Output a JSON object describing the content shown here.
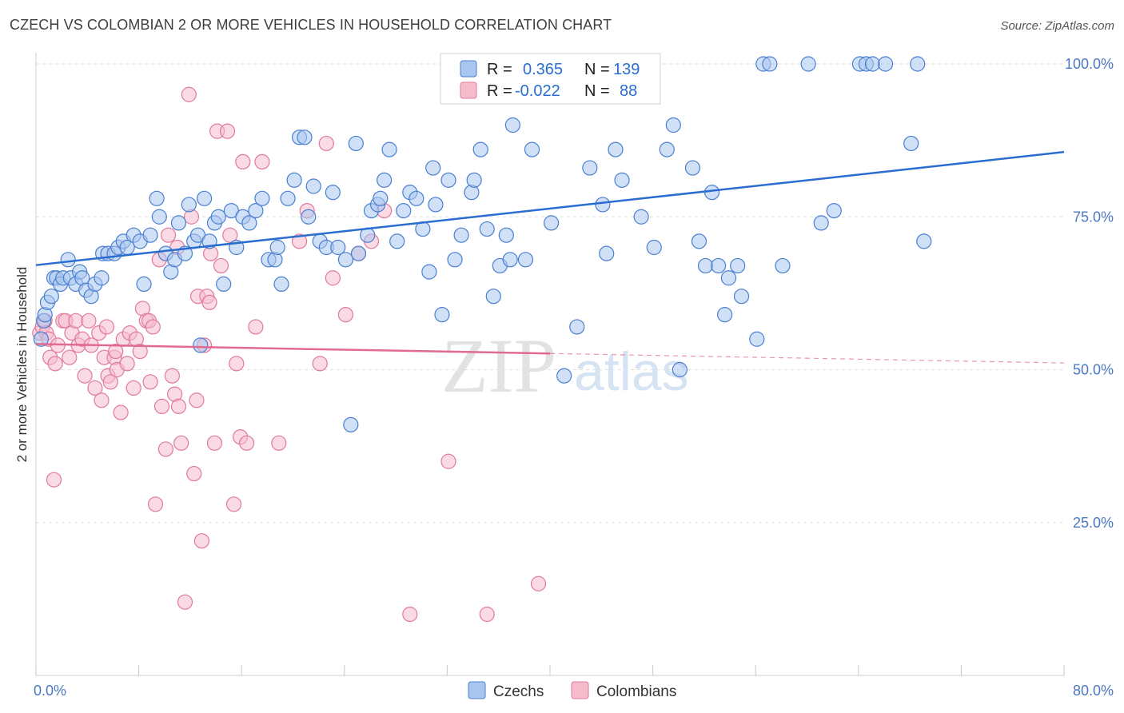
{
  "title": "CZECH VS COLOMBIAN 2 OR MORE VEHICLES IN HOUSEHOLD CORRELATION CHART",
  "source": "Source: ZipAtlas.com",
  "watermark": {
    "zip": "ZIP",
    "atlas": "atlas"
  },
  "legend": {
    "rows": [
      {
        "r_label": "R =",
        "r_value": "0.365",
        "n_label": "N =",
        "n_value": "139"
      },
      {
        "r_label": "R =",
        "r_value": "-0.022",
        "n_label": "N =",
        "n_value": "88"
      }
    ]
  },
  "colors": {
    "czech_fill": "#a9c6ee",
    "czech_stroke": "#4a7fd0",
    "czech_line": "#2a6dd0",
    "colombian_fill": "#f6bccd",
    "colombian_stroke": "#e07a9b",
    "colombian_line": "#e06a92",
    "legend_value": "#2a6dd0",
    "grid": "#dddddd"
  },
  "chart_data": {
    "type": "scatter",
    "title": "CZECH VS COLOMBIAN 2 OR MORE VEHICLES IN HOUSEHOLD CORRELATION CHART",
    "xlabel": "",
    "ylabel": "2 or more Vehicles in Household",
    "xlim": [
      0,
      80
    ],
    "ylim": [
      0,
      105
    ],
    "x_tick_labels": [
      "0.0%",
      "80.0%"
    ],
    "y_ticks": [
      25,
      50,
      75,
      100
    ],
    "y_tick_labels": [
      "25.0%",
      "50.0%",
      "75.0%",
      "100.0%"
    ],
    "grid": true,
    "legend_position": "top-center",
    "series": [
      {
        "name": "Czechs",
        "r": 0.365,
        "n": 139,
        "trend": {
          "x": [
            0,
            80
          ],
          "y": [
            67.1,
            85.6
          ],
          "dashed_from": null
        },
        "points": [
          [
            0.4,
            55
          ],
          [
            0.6,
            58
          ],
          [
            0.7,
            59
          ],
          [
            0.9,
            61
          ],
          [
            1.2,
            62
          ],
          [
            1.4,
            65
          ],
          [
            1.6,
            65
          ],
          [
            1.9,
            64
          ],
          [
            2.1,
            65
          ],
          [
            2.5,
            68
          ],
          [
            2.7,
            65
          ],
          [
            3.1,
            64
          ],
          [
            3.4,
            66
          ],
          [
            3.6,
            65
          ],
          [
            3.9,
            63
          ],
          [
            4.3,
            62
          ],
          [
            4.6,
            64
          ],
          [
            5.1,
            65
          ],
          [
            5.2,
            69
          ],
          [
            5.6,
            69
          ],
          [
            6.1,
            69
          ],
          [
            6.4,
            70
          ],
          [
            6.8,
            71
          ],
          [
            7.1,
            70
          ],
          [
            7.6,
            72
          ],
          [
            8.1,
            71
          ],
          [
            8.4,
            64
          ],
          [
            8.9,
            72
          ],
          [
            9.4,
            78
          ],
          [
            9.6,
            75
          ],
          [
            10.1,
            69
          ],
          [
            10.5,
            66
          ],
          [
            10.8,
            68
          ],
          [
            11.1,
            74
          ],
          [
            11.6,
            69
          ],
          [
            11.9,
            77
          ],
          [
            12.3,
            71
          ],
          [
            12.6,
            72
          ],
          [
            12.8,
            54
          ],
          [
            13.1,
            78
          ],
          [
            13.5,
            71
          ],
          [
            13.9,
            74
          ],
          [
            14.2,
            75
          ],
          [
            14.6,
            64
          ],
          [
            15.2,
            76
          ],
          [
            15.6,
            70
          ],
          [
            16.1,
            75
          ],
          [
            16.6,
            74
          ],
          [
            17.1,
            76
          ],
          [
            17.6,
            78
          ],
          [
            18.1,
            68
          ],
          [
            18.6,
            68
          ],
          [
            18.8,
            70
          ],
          [
            19.1,
            64
          ],
          [
            19.6,
            78
          ],
          [
            20.1,
            81
          ],
          [
            20.5,
            88
          ],
          [
            20.9,
            88
          ],
          [
            21.2,
            75
          ],
          [
            21.6,
            80
          ],
          [
            22.1,
            71
          ],
          [
            22.6,
            70
          ],
          [
            23.1,
            79
          ],
          [
            23.5,
            70
          ],
          [
            24.1,
            68
          ],
          [
            24.5,
            41
          ],
          [
            24.9,
            87
          ],
          [
            25.1,
            69
          ],
          [
            25.8,
            72
          ],
          [
            26.1,
            76
          ],
          [
            26.6,
            77
          ],
          [
            26.8,
            78
          ],
          [
            27.1,
            81
          ],
          [
            27.5,
            86
          ],
          [
            28.1,
            71
          ],
          [
            28.6,
            76
          ],
          [
            29.1,
            79
          ],
          [
            29.6,
            78
          ],
          [
            30.1,
            73
          ],
          [
            30.6,
            66
          ],
          [
            30.9,
            83
          ],
          [
            31.1,
            77
          ],
          [
            31.6,
            59
          ],
          [
            32.1,
            81
          ],
          [
            32.6,
            68
          ],
          [
            33.1,
            72
          ],
          [
            33.9,
            79
          ],
          [
            34.1,
            81
          ],
          [
            34.6,
            86
          ],
          [
            35.1,
            73
          ],
          [
            35.6,
            62
          ],
          [
            36.1,
            67
          ],
          [
            36.6,
            72
          ],
          [
            36.9,
            68
          ],
          [
            37.1,
            90
          ],
          [
            38.1,
            68
          ],
          [
            38.6,
            86
          ],
          [
            39.1,
            100
          ],
          [
            40.1,
            74
          ],
          [
            41.1,
            49
          ],
          [
            42.1,
            57
          ],
          [
            43.1,
            83
          ],
          [
            44.1,
            77
          ],
          [
            44.4,
            69
          ],
          [
            45.1,
            86
          ],
          [
            45.6,
            81
          ],
          [
            46.1,
            100
          ],
          [
            47.1,
            75
          ],
          [
            48.1,
            70
          ],
          [
            49.1,
            86
          ],
          [
            49.6,
            90
          ],
          [
            50.1,
            50
          ],
          [
            51.1,
            83
          ],
          [
            51.6,
            71
          ],
          [
            52.1,
            67
          ],
          [
            52.6,
            79
          ],
          [
            53.1,
            67
          ],
          [
            53.6,
            59
          ],
          [
            53.9,
            65
          ],
          [
            54.6,
            67
          ],
          [
            54.9,
            62
          ],
          [
            56.1,
            55
          ],
          [
            56.6,
            100
          ],
          [
            57.1,
            100
          ],
          [
            58.1,
            67
          ],
          [
            60.1,
            100
          ],
          [
            61.1,
            74
          ],
          [
            62.1,
            76
          ],
          [
            64.1,
            100
          ],
          [
            64.6,
            100
          ],
          [
            65.1,
            100
          ],
          [
            66.1,
            100
          ],
          [
            68.1,
            87
          ],
          [
            68.6,
            100
          ],
          [
            69.1,
            71
          ]
        ]
      },
      {
        "name": "Colombians",
        "r": -0.022,
        "n": 88,
        "trend": {
          "x": [
            0,
            80
          ],
          "y": [
            54.2,
            51.1
          ],
          "dashed_from": 40
        },
        "points": [
          [
            0.3,
            56
          ],
          [
            0.5,
            57
          ],
          [
            0.7,
            58
          ],
          [
            0.8,
            56
          ],
          [
            1.0,
            55
          ],
          [
            1.1,
            52
          ],
          [
            1.4,
            32
          ],
          [
            1.5,
            51
          ],
          [
            1.7,
            54
          ],
          [
            2.1,
            58
          ],
          [
            2.3,
            58
          ],
          [
            2.6,
            52
          ],
          [
            2.8,
            56
          ],
          [
            3.1,
            58
          ],
          [
            3.3,
            54
          ],
          [
            3.6,
            55
          ],
          [
            3.8,
            49
          ],
          [
            4.1,
            58
          ],
          [
            4.3,
            54
          ],
          [
            4.6,
            47
          ],
          [
            4.9,
            56
          ],
          [
            5.1,
            45
          ],
          [
            5.3,
            52
          ],
          [
            5.5,
            57
          ],
          [
            5.6,
            49
          ],
          [
            5.8,
            48
          ],
          [
            6.1,
            52
          ],
          [
            6.2,
            53
          ],
          [
            6.3,
            50
          ],
          [
            6.6,
            43
          ],
          [
            6.8,
            55
          ],
          [
            7.1,
            51
          ],
          [
            7.3,
            56
          ],
          [
            7.6,
            47
          ],
          [
            7.8,
            55
          ],
          [
            8.1,
            53
          ],
          [
            8.3,
            60
          ],
          [
            8.6,
            58
          ],
          [
            8.8,
            58
          ],
          [
            8.9,
            48
          ],
          [
            9.1,
            57
          ],
          [
            9.3,
            28
          ],
          [
            9.6,
            68
          ],
          [
            9.8,
            44
          ],
          [
            10.1,
            37
          ],
          [
            10.3,
            72
          ],
          [
            10.6,
            49
          ],
          [
            10.8,
            46
          ],
          [
            11.0,
            70
          ],
          [
            11.1,
            44
          ],
          [
            11.3,
            38
          ],
          [
            11.6,
            12
          ],
          [
            11.9,
            95
          ],
          [
            12.1,
            75
          ],
          [
            12.3,
            33
          ],
          [
            12.5,
            45
          ],
          [
            12.6,
            62
          ],
          [
            12.9,
            22
          ],
          [
            13.1,
            54
          ],
          [
            13.3,
            62
          ],
          [
            13.5,
            61
          ],
          [
            13.6,
            69
          ],
          [
            13.9,
            38
          ],
          [
            14.1,
            89
          ],
          [
            14.4,
            67
          ],
          [
            14.9,
            89
          ],
          [
            15.1,
            72
          ],
          [
            15.4,
            28
          ],
          [
            15.6,
            51
          ],
          [
            15.9,
            39
          ],
          [
            16.1,
            84
          ],
          [
            16.4,
            38
          ],
          [
            17.1,
            57
          ],
          [
            17.6,
            84
          ],
          [
            18.9,
            38
          ],
          [
            20.5,
            71
          ],
          [
            21.1,
            76
          ],
          [
            22.1,
            51
          ],
          [
            22.6,
            87
          ],
          [
            23.1,
            65
          ],
          [
            24.1,
            59
          ],
          [
            25.1,
            69
          ],
          [
            26.1,
            71
          ],
          [
            27.1,
            76
          ],
          [
            29.1,
            10
          ],
          [
            32.1,
            35
          ],
          [
            35.1,
            10
          ],
          [
            39.1,
            15
          ]
        ]
      }
    ]
  },
  "bottom_legend": [
    "Czechs",
    "Colombians"
  ]
}
